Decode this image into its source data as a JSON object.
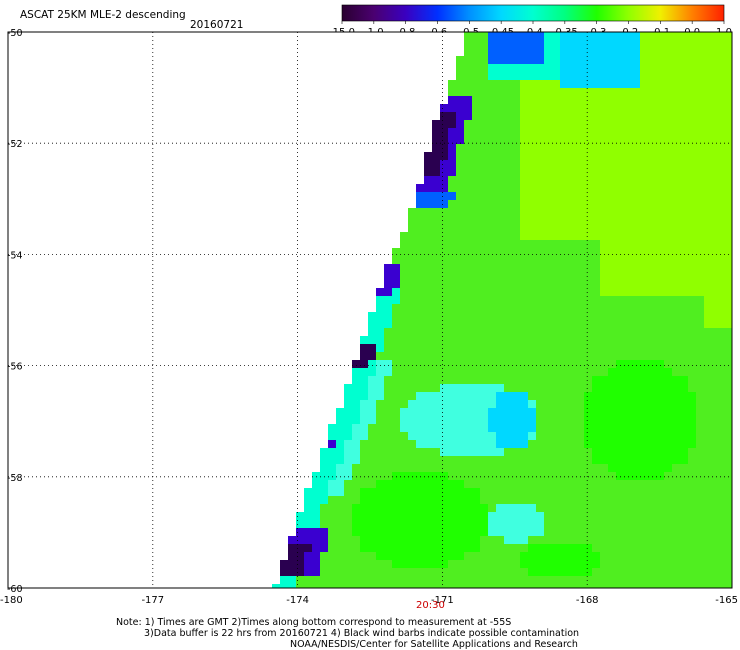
{
  "header": {
    "title": "ASCAT 25KM MLE-2 descending",
    "date": "20160721"
  },
  "colorbar": {
    "labels": [
      "-15.0",
      "-1.0",
      "-0.8",
      "-0.6",
      "-0.5",
      "-0.45",
      "-0.4",
      "-0.35",
      "-0.3",
      "-0.2",
      "-0.1",
      "0.0",
      "1.0"
    ],
    "colors": [
      "#2a0030",
      "#4a0070",
      "#3a00c0",
      "#0030ff",
      "#0090ff",
      "#00d8ff",
      "#00ffd0",
      "#00ff80",
      "#20ff00",
      "#90ff00",
      "#f0f000",
      "#ff8000",
      "#ff2000"
    ]
  },
  "map": {
    "lat_labels": [
      "-50",
      "-52",
      "-54",
      "-56",
      "-58",
      "-60"
    ],
    "lon_labels": [
      "-180",
      "-177",
      "-174",
      "-171",
      "-168",
      "-165"
    ],
    "pass_time": "20:30",
    "swath_colors": {
      "base": "#50ee20",
      "yellow_green": "#90ff00",
      "green": "#20ff00",
      "cyan": "#00ffd0",
      "light_cyan": "#40ffe0",
      "sky": "#00d8ff",
      "blue": "#0060ff",
      "deep_blue": "#3a00d0",
      "purple": "#2a0050"
    }
  },
  "notes": {
    "line1": "Note: 1) Times are GMT 2)Times along bottom correspond to measurement at -55S",
    "line2": "3)Data buffer is 22 hrs from 20160721 4) Black wind barbs indicate possible contamination",
    "line3": "NOAA/NESDIS/Center for Satellite Applications and Research"
  }
}
